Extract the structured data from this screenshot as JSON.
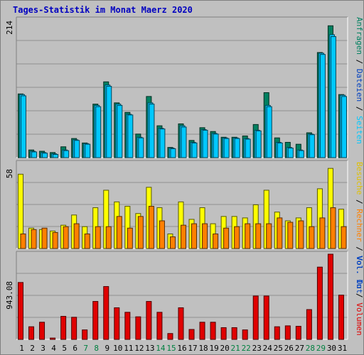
{
  "title": "Tages-Statistik im Monat Maerz 2020",
  "colors": {
    "background": "#c0c0c0",
    "title_color": "#0000c0",
    "anfragen": "#008060",
    "dateien": "#00c8ff",
    "seiten": "#00c8ff",
    "besuche": "#ffff00",
    "rechner": "#ff8000",
    "volumen": "#e00000",
    "weekend_label": "#008040",
    "weekday_label": "#000000"
  },
  "right_labels": {
    "top": [
      {
        "text": "Anfragen",
        "color": "#008060"
      },
      {
        "text": "Dateien",
        "color": "#0040c0"
      },
      {
        "text": "Seiten",
        "color": "#00c8ff"
      }
    ],
    "middle": [
      {
        "text": "Besuche",
        "color": "#e0c000"
      },
      {
        "text": "Rechner",
        "color": "#ff8000"
      },
      {
        "text": "Vol. Out",
        "color": "#0040c0"
      }
    ],
    "bottom": [
      {
        "text": "Vol. In",
        "color": "#0040c0"
      },
      {
        "text": "Volumen",
        "color": "#e00000"
      }
    ]
  },
  "right_separator": "/",
  "axis_max_labels": {
    "top": "214",
    "middle": "58",
    "bottom": "943.08"
  },
  "chart_data": [
    {
      "type": "bar",
      "name": "requests-files-pages",
      "categories": [
        "1",
        "2",
        "3",
        "4",
        "5",
        "6",
        "7",
        "8",
        "9",
        "10",
        "11",
        "12",
        "13",
        "14",
        "15",
        "16",
        "17",
        "18",
        "19",
        "20",
        "21",
        "22",
        "23",
        "24",
        "25",
        "26",
        "27",
        "28",
        "29",
        "30",
        "31"
      ],
      "weekend": [
        false,
        false,
        false,
        false,
        false,
        false,
        true,
        true,
        false,
        false,
        false,
        false,
        false,
        true,
        true,
        false,
        false,
        false,
        false,
        false,
        true,
        true,
        false,
        false,
        false,
        false,
        false,
        true,
        true,
        false,
        false
      ],
      "ylim": [
        0,
        214
      ],
      "series": [
        {
          "name": "Anfragen",
          "values": [
            100,
            12,
            10,
            8,
            17,
            30,
            23,
            84,
            119,
            86,
            71,
            37,
            96,
            50,
            16,
            53,
            27,
            47,
            41,
            32,
            32,
            34,
            52,
            102,
            31,
            24,
            21,
            39,
            165,
            207,
            99
          ]
        },
        {
          "name": "Dateien",
          "values": [
            99,
            10,
            8,
            6,
            12,
            28,
            22,
            82,
            114,
            84,
            68,
            32,
            86,
            46,
            15,
            50,
            24,
            44,
            38,
            31,
            31,
            30,
            43,
            82,
            24,
            16,
            12,
            37,
            164,
            193,
            98
          ]
        },
        {
          "name": "Seiten",
          "values": [
            97,
            9,
            7,
            5,
            11,
            27,
            21,
            80,
            112,
            82,
            67,
            31,
            84,
            45,
            14,
            48,
            23,
            43,
            37,
            30,
            30,
            29,
            42,
            80,
            23,
            15,
            11,
            36,
            162,
            190,
            96
          ]
        }
      ]
    },
    {
      "type": "bar",
      "name": "visits-hosts",
      "categories": [
        "1",
        "2",
        "3",
        "4",
        "5",
        "6",
        "7",
        "8",
        "9",
        "10",
        "11",
        "12",
        "13",
        "14",
        "15",
        "16",
        "17",
        "18",
        "19",
        "20",
        "21",
        "22",
        "23",
        "24",
        "25",
        "26",
        "27",
        "28",
        "29",
        "30",
        "31"
      ],
      "ylim": [
        0,
        58
      ],
      "series": [
        {
          "name": "Besuche",
          "values": [
            51,
            14,
            13,
            12,
            16,
            23,
            15,
            28,
            40,
            32,
            29,
            24,
            42,
            28,
            10,
            32,
            20,
            28,
            17,
            22,
            22,
            21,
            30,
            40,
            25,
            19,
            21,
            28,
            41,
            55,
            27
          ]
        },
        {
          "name": "Rechner",
          "values": [
            10,
            13,
            14,
            11,
            15,
            17,
            10,
            15,
            15,
            22,
            14,
            22,
            29,
            19,
            8,
            16,
            17,
            17,
            10,
            14,
            15,
            17,
            17,
            17,
            21,
            18,
            19,
            15,
            21,
            28,
            15
          ]
        }
      ]
    },
    {
      "type": "bar",
      "name": "volume",
      "categories": [
        "1",
        "2",
        "3",
        "4",
        "5",
        "6",
        "7",
        "8",
        "9",
        "10",
        "11",
        "12",
        "13",
        "14",
        "15",
        "16",
        "17",
        "18",
        "19",
        "20",
        "21",
        "22",
        "23",
        "24",
        "25",
        "26",
        "27",
        "28",
        "29",
        "30",
        "31"
      ],
      "ylim": [
        0,
        943.08
      ],
      "series": [
        {
          "name": "Volumen",
          "values": [
            630,
            140,
            190,
            15,
            255,
            245,
            105,
            420,
            585,
            350,
            300,
            250,
            420,
            300,
            65,
            350,
            110,
            190,
            190,
            130,
            130,
            105,
            480,
            480,
            140,
            150,
            145,
            330,
            800,
            943.08,
            490
          ]
        }
      ]
    }
  ]
}
